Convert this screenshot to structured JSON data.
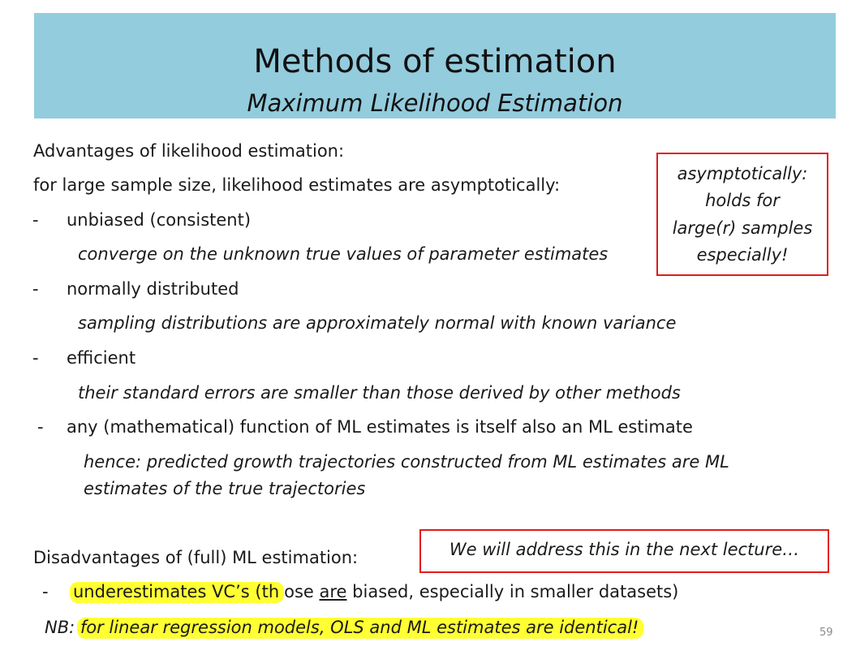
{
  "header": {
    "title": "Methods of estimation",
    "subtitle": "Maximum Likelihood Estimation",
    "background": "#93ccdd"
  },
  "body": {
    "advantages_heading": "Advantages of likelihood estimation:",
    "advantages_intro": "for large sample size, likelihood estimates are asymptotically:",
    "bullets": [
      {
        "marker": "-",
        "label": "unbiased (consistent)",
        "detail": "converge on the unknown true values of parameter estimates"
      },
      {
        "marker": "-",
        "label": "normally distributed",
        "detail": "sampling distributions are approximately normal with known variance"
      },
      {
        "marker": "-",
        "label": "efficient",
        "detail": "their standard errors are smaller than those derived by other methods"
      },
      {
        "marker": "-",
        "label": "any (mathematical) function of ML estimates is itself also an ML estimate",
        "detail_line1": "hence: predicted growth trajectories constructed from ML estimates are ML",
        "detail_line2": "estimates of the true trajectories"
      }
    ],
    "disadvantages_heading": "Disadvantages of (full) ML estimation:",
    "disadvantage_item": {
      "marker": "-",
      "highlight": "underestimates VC’s (th",
      "mid": "ose ",
      "underlined": "are",
      "rest": " biased, especially in smaller datasets)"
    },
    "nb": {
      "prefix": "NB: ",
      "highlight": "for linear regression models, OLS and ML estimates are identical!"
    }
  },
  "callouts": {
    "asymptotic": {
      "lines": [
        "asymptotically:",
        "holds for",
        "large(r) samples",
        "especially!"
      ],
      "border_color": "#e31b1b"
    },
    "next_lecture": {
      "text": "We will address this in the next lecture…",
      "border_color": "#e31b1b"
    }
  },
  "highlight_color": "#ffff33",
  "page_number": "59"
}
